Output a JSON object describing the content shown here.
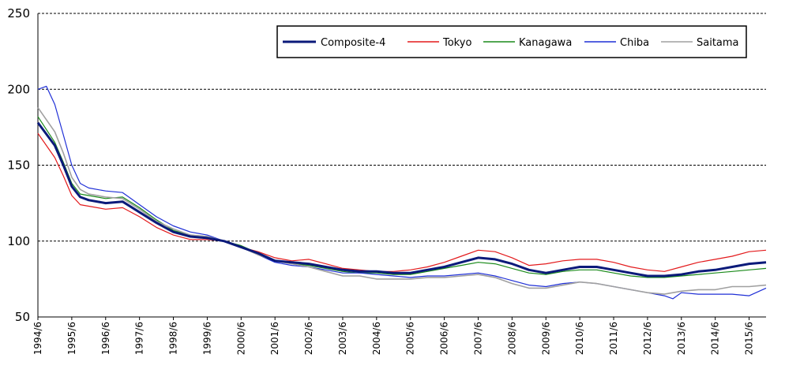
{
  "chart_data": {
    "type": "line",
    "title": "",
    "xlabel": "",
    "ylabel": "",
    "ylim": [
      50,
      250
    ],
    "yticks": [
      50,
      100,
      150,
      200,
      250
    ],
    "grid": "horizontal dashed",
    "legend_position": "top-right",
    "x_labels": [
      "1994/6",
      "1995/6",
      "1996/6",
      "1997/6",
      "1998/6",
      "1999/6",
      "2000/6",
      "2001/6",
      "2002/6",
      "2003/6",
      "2004/6",
      "2005/6",
      "2006/6",
      "2007/6",
      "2008/6",
      "2009/6",
      "2010/6",
      "2011/6",
      "2012/6",
      "2013/6",
      "2014/6",
      "2015/6"
    ],
    "x_start": 1994.5,
    "x_end": 2016.0,
    "series": [
      {
        "name": "Composite-4",
        "color": "#0b1a7a",
        "width": 3,
        "points": [
          [
            1994.5,
            178
          ],
          [
            1995.0,
            163
          ],
          [
            1995.25,
            150
          ],
          [
            1995.5,
            136
          ],
          [
            1995.75,
            129
          ],
          [
            1996.0,
            127
          ],
          [
            1996.5,
            125
          ],
          [
            1997.0,
            126
          ],
          [
            1997.5,
            119
          ],
          [
            1998.0,
            112
          ],
          [
            1998.5,
            106
          ],
          [
            1999.0,
            103
          ],
          [
            1999.5,
            102
          ],
          [
            2000.0,
            100
          ],
          [
            2000.5,
            96
          ],
          [
            2001.0,
            92
          ],
          [
            2001.5,
            87
          ],
          [
            2002.0,
            86
          ],
          [
            2002.5,
            85
          ],
          [
            2003.0,
            83
          ],
          [
            2003.5,
            81
          ],
          [
            2004.0,
            80
          ],
          [
            2004.5,
            80
          ],
          [
            2005.0,
            79
          ],
          [
            2005.5,
            79
          ],
          [
            2006.0,
            81
          ],
          [
            2006.5,
            83
          ],
          [
            2007.0,
            86
          ],
          [
            2007.5,
            89
          ],
          [
            2008.0,
            88
          ],
          [
            2008.5,
            85
          ],
          [
            2009.0,
            81
          ],
          [
            2009.5,
            79
          ],
          [
            2010.0,
            81
          ],
          [
            2010.5,
            83
          ],
          [
            2011.0,
            83
          ],
          [
            2011.5,
            81
          ],
          [
            2012.0,
            79
          ],
          [
            2012.5,
            77
          ],
          [
            2013.0,
            77
          ],
          [
            2013.5,
            78
          ],
          [
            2014.0,
            80
          ],
          [
            2014.5,
            81
          ],
          [
            2015.0,
            83
          ],
          [
            2015.5,
            85
          ],
          [
            2016.0,
            86
          ]
        ]
      },
      {
        "name": "Tokyo",
        "color": "#e31a1c",
        "width": 1.2,
        "points": [
          [
            1994.5,
            171
          ],
          [
            1995.0,
            155
          ],
          [
            1995.25,
            143
          ],
          [
            1995.5,
            130
          ],
          [
            1995.75,
            124
          ],
          [
            1996.0,
            123
          ],
          [
            1996.5,
            121
          ],
          [
            1997.0,
            122
          ],
          [
            1997.5,
            116
          ],
          [
            1998.0,
            109
          ],
          [
            1998.5,
            104
          ],
          [
            1999.0,
            101
          ],
          [
            1999.5,
            101
          ],
          [
            2000.0,
            100
          ],
          [
            2000.5,
            96
          ],
          [
            2001.0,
            93
          ],
          [
            2001.5,
            89
          ],
          [
            2002.0,
            87
          ],
          [
            2002.5,
            88
          ],
          [
            2003.0,
            85
          ],
          [
            2003.5,
            82
          ],
          [
            2004.0,
            81
          ],
          [
            2004.5,
            80
          ],
          [
            2005.0,
            80
          ],
          [
            2005.5,
            81
          ],
          [
            2006.0,
            83
          ],
          [
            2006.5,
            86
          ],
          [
            2007.0,
            90
          ],
          [
            2007.5,
            94
          ],
          [
            2008.0,
            93
          ],
          [
            2008.5,
            89
          ],
          [
            2009.0,
            84
          ],
          [
            2009.5,
            85
          ],
          [
            2010.0,
            87
          ],
          [
            2010.5,
            88
          ],
          [
            2011.0,
            88
          ],
          [
            2011.5,
            86
          ],
          [
            2012.0,
            83
          ],
          [
            2012.5,
            81
          ],
          [
            2013.0,
            80
          ],
          [
            2013.5,
            83
          ],
          [
            2014.0,
            86
          ],
          [
            2014.5,
            88
          ],
          [
            2015.0,
            90
          ],
          [
            2015.5,
            93
          ],
          [
            2016.0,
            94
          ]
        ]
      },
      {
        "name": "Kanagawa",
        "color": "#1a8a1a",
        "width": 1.2,
        "points": [
          [
            1994.5,
            182
          ],
          [
            1995.0,
            165
          ],
          [
            1995.25,
            152
          ],
          [
            1995.5,
            138
          ],
          [
            1995.75,
            131
          ],
          [
            1996.0,
            130
          ],
          [
            1996.5,
            128
          ],
          [
            1997.0,
            129
          ],
          [
            1997.5,
            122
          ],
          [
            1998.0,
            114
          ],
          [
            1998.5,
            107
          ],
          [
            1999.0,
            104
          ],
          [
            1999.5,
            103
          ],
          [
            2000.0,
            100
          ],
          [
            2000.5,
            97
          ],
          [
            2001.0,
            92
          ],
          [
            2001.5,
            87
          ],
          [
            2002.0,
            85
          ],
          [
            2002.5,
            84
          ],
          [
            2003.0,
            82
          ],
          [
            2003.5,
            80
          ],
          [
            2004.0,
            79
          ],
          [
            2004.5,
            79
          ],
          [
            2005.0,
            78
          ],
          [
            2005.5,
            78
          ],
          [
            2006.0,
            80
          ],
          [
            2006.5,
            82
          ],
          [
            2007.0,
            84
          ],
          [
            2007.5,
            86
          ],
          [
            2008.0,
            85
          ],
          [
            2008.5,
            82
          ],
          [
            2009.0,
            79
          ],
          [
            2009.5,
            78
          ],
          [
            2010.0,
            80
          ],
          [
            2010.5,
            81
          ],
          [
            2011.0,
            81
          ],
          [
            2011.5,
            79
          ],
          [
            2012.0,
            77
          ],
          [
            2012.5,
            76
          ],
          [
            2013.0,
            76
          ],
          [
            2013.5,
            77
          ],
          [
            2014.0,
            78
          ],
          [
            2014.5,
            79
          ],
          [
            2015.0,
            80
          ],
          [
            2015.5,
            81
          ],
          [
            2016.0,
            82
          ]
        ]
      },
      {
        "name": "Chiba",
        "color": "#1f2fd6",
        "width": 1.2,
        "points": [
          [
            1994.5,
            200
          ],
          [
            1994.75,
            202
          ],
          [
            1995.0,
            190
          ],
          [
            1995.25,
            170
          ],
          [
            1995.5,
            150
          ],
          [
            1995.75,
            138
          ],
          [
            1996.0,
            135
          ],
          [
            1996.5,
            133
          ],
          [
            1997.0,
            132
          ],
          [
            1997.5,
            124
          ],
          [
            1998.0,
            116
          ],
          [
            1998.5,
            110
          ],
          [
            1999.0,
            106
          ],
          [
            1999.5,
            104
          ],
          [
            2000.0,
            100
          ],
          [
            2000.5,
            96
          ],
          [
            2001.0,
            91
          ],
          [
            2001.5,
            86
          ],
          [
            2002.0,
            84
          ],
          [
            2002.5,
            83
          ],
          [
            2003.0,
            81
          ],
          [
            2003.5,
            79
          ],
          [
            2004.0,
            79
          ],
          [
            2004.5,
            78
          ],
          [
            2005.0,
            77
          ],
          [
            2005.5,
            76
          ],
          [
            2006.0,
            77
          ],
          [
            2006.5,
            77
          ],
          [
            2007.0,
            78
          ],
          [
            2007.5,
            79
          ],
          [
            2008.0,
            77
          ],
          [
            2008.5,
            74
          ],
          [
            2009.0,
            71
          ],
          [
            2009.5,
            70
          ],
          [
            2010.0,
            72
          ],
          [
            2010.5,
            73
          ],
          [
            2011.0,
            72
          ],
          [
            2011.5,
            70
          ],
          [
            2012.0,
            68
          ],
          [
            2012.5,
            66
          ],
          [
            2013.0,
            64
          ],
          [
            2013.25,
            62
          ],
          [
            2013.5,
            66
          ],
          [
            2014.0,
            65
          ],
          [
            2014.5,
            65
          ],
          [
            2015.0,
            65
          ],
          [
            2015.5,
            64
          ],
          [
            2016.0,
            69
          ]
        ]
      },
      {
        "name": "Saitama",
        "color": "#a0a0a0",
        "width": 1.6,
        "points": [
          [
            1994.5,
            188
          ],
          [
            1995.0,
            172
          ],
          [
            1995.25,
            158
          ],
          [
            1995.5,
            142
          ],
          [
            1995.75,
            134
          ],
          [
            1996.0,
            131
          ],
          [
            1996.5,
            129
          ],
          [
            1997.0,
            128
          ],
          [
            1997.5,
            121
          ],
          [
            1998.0,
            113
          ],
          [
            1998.5,
            108
          ],
          [
            1999.0,
            104
          ],
          [
            1999.5,
            103
          ],
          [
            2000.0,
            100
          ],
          [
            2000.5,
            96
          ],
          [
            2001.0,
            91
          ],
          [
            2001.5,
            87
          ],
          [
            2002.0,
            85
          ],
          [
            2002.5,
            83
          ],
          [
            2003.0,
            80
          ],
          [
            2003.5,
            77
          ],
          [
            2004.0,
            77
          ],
          [
            2004.5,
            75
          ],
          [
            2005.0,
            75
          ],
          [
            2005.5,
            75
          ],
          [
            2006.0,
            76
          ],
          [
            2006.5,
            76
          ],
          [
            2007.0,
            77
          ],
          [
            2007.5,
            78
          ],
          [
            2008.0,
            76
          ],
          [
            2008.5,
            72
          ],
          [
            2009.0,
            69
          ],
          [
            2009.5,
            69
          ],
          [
            2010.0,
            71
          ],
          [
            2010.5,
            73
          ],
          [
            2011.0,
            72
          ],
          [
            2011.5,
            70
          ],
          [
            2012.0,
            68
          ],
          [
            2012.5,
            66
          ],
          [
            2013.0,
            65
          ],
          [
            2013.5,
            67
          ],
          [
            2014.0,
            68
          ],
          [
            2014.5,
            68
          ],
          [
            2015.0,
            70
          ],
          [
            2015.5,
            70
          ],
          [
            2016.0,
            71
          ]
        ]
      }
    ]
  }
}
